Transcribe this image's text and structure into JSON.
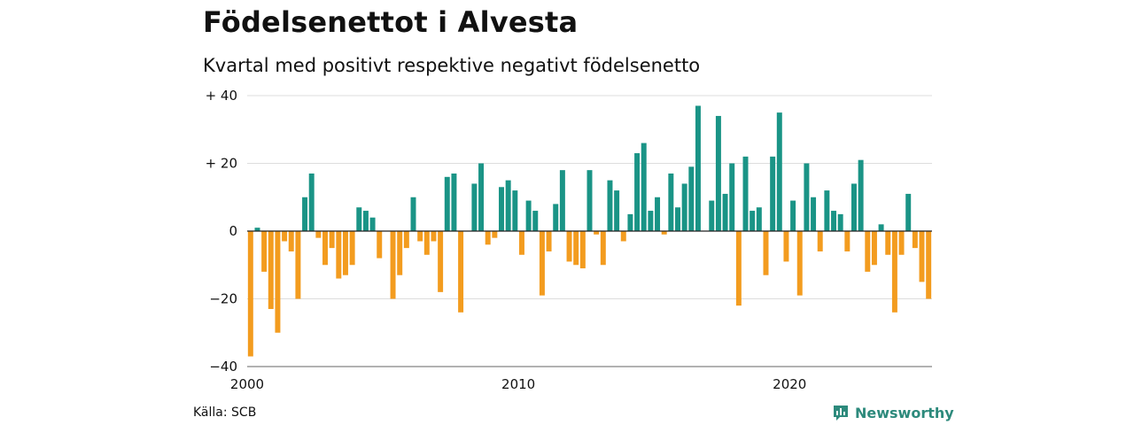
{
  "chart_data": {
    "type": "bar",
    "title": "Födelsenettot i Alvesta",
    "subtitle": "Kvartal med positivt respektive negativt födelsenetto",
    "x_start": "2000 Q1",
    "x_ticks": [
      "2000",
      "2010",
      "2020"
    ],
    "y_ticks": [
      "+ 40",
      "+ 20",
      "0",
      "−20",
      "−40"
    ],
    "ylim": [
      -40,
      40
    ],
    "grid": "horizontal",
    "colors": {
      "positive": "#1a9486",
      "negative": "#f39c1f"
    },
    "values": [
      -37,
      1,
      -12,
      -23,
      -30,
      -3,
      -6,
      -20,
      10,
      17,
      -2,
      -10,
      -5,
      -14,
      -13,
      -10,
      7,
      6,
      4,
      -8,
      0,
      -20,
      -13,
      -5,
      10,
      -3,
      -7,
      -3,
      -18,
      16,
      17,
      -24,
      0,
      14,
      20,
      -4,
      -2,
      13,
      15,
      12,
      -7,
      9,
      6,
      -19,
      -6,
      8,
      18,
      -9,
      -10,
      -11,
      18,
      -1,
      -10,
      15,
      12,
      -3,
      5,
      23,
      26,
      6,
      10,
      -1,
      17,
      7,
      14,
      19,
      37,
      0,
      9,
      34,
      11,
      20,
      -22,
      22,
      6,
      7,
      -13,
      22,
      35,
      -9,
      9,
      -19,
      20,
      10,
      -6,
      12,
      6,
      5,
      -6,
      14,
      21,
      -12,
      -10,
      2,
      -7,
      -24,
      -7,
      11,
      -5,
      -15,
      -20
    ]
  },
  "footer": {
    "source": "Källa: SCB",
    "brand": "Newsworthy",
    "brand_icon": "bar-chart-speech-bubble-icon"
  }
}
